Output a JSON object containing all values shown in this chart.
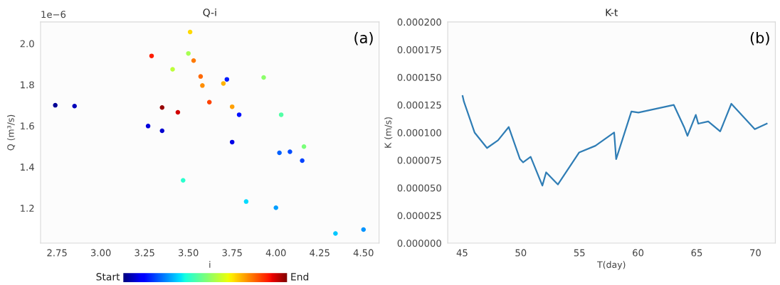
{
  "chart_data": [
    {
      "type": "scatter",
      "title": "Q-i",
      "xlabel": "i",
      "ylabel": "Q (m³/s)",
      "annotations": [
        "(a)",
        "1e−6",
        "Start",
        "End"
      ],
      "x": [
        2.74,
        2.85,
        3.51,
        3.29,
        3.5,
        3.53,
        3.41,
        3.57,
        3.72,
        3.93,
        3.58,
        3.7,
        3.62,
        3.75,
        3.35,
        3.44,
        3.79,
        4.03,
        3.27,
        3.35,
        3.75,
        4.16,
        4.02,
        4.08,
        4.15,
        3.47,
        3.83,
        4.0,
        4.34,
        4.5
      ],
      "values": [
        1.7,
        1.696,
        2.056,
        1.94,
        1.952,
        1.917,
        1.875,
        1.84,
        1.826,
        1.835,
        1.796,
        1.806,
        1.715,
        1.693,
        1.689,
        1.666,
        1.654,
        1.654,
        1.599,
        1.576,
        1.521,
        1.499,
        1.469,
        1.474,
        1.431,
        1.335,
        1.232,
        1.202,
        1.077,
        1.096
      ],
      "colors": [
        "#000096",
        "#0000ba",
        "#ffd900",
        "#ff1c00",
        "#a6ff52",
        "#ff7a00",
        "#bdff3a",
        "#ff6800",
        "#001aff",
        "#8cff6b",
        "#ff8e00",
        "#ffb300",
        "#ff4200",
        "#ffa000",
        "#960000",
        "#d10000",
        "#000fff",
        "#52ffa6",
        "#0000dc",
        "#0000d1",
        "#0000e8",
        "#7aff7a",
        "#0061ff",
        "#004cff",
        "#0042ff",
        "#29ffce",
        "#00dbff",
        "#009eff",
        "#00c7ff",
        "#0094ff"
      ],
      "xlim": [
        2.656,
        4.589
      ],
      "xticks": [
        {
          "value": 2.75,
          "label": "2.75"
        },
        {
          "value": 3.0,
          "label": "3.00"
        },
        {
          "value": 3.25,
          "label": "3.25"
        },
        {
          "value": 3.5,
          "label": "3.50"
        },
        {
          "value": 3.75,
          "label": "3.75"
        },
        {
          "value": 4.0,
          "label": "4.00"
        },
        {
          "value": 4.25,
          "label": "4.25"
        },
        {
          "value": 4.5,
          "label": "4.50"
        }
      ],
      "ylim": [
        1.03,
        2.105
      ],
      "yticks": [
        1.2,
        1.4,
        1.6,
        1.8,
        {
          "value": 2.0,
          "label": "2.0"
        }
      ],
      "marker": "circle",
      "grid": false
    },
    {
      "type": "line",
      "title": "K-t",
      "xlabel": "T(day)",
      "ylabel": "K (m/s)",
      "annotations": [
        "(b)"
      ],
      "color": "#2f7db5",
      "x": [
        45.04,
        45.15,
        46.06,
        47.12,
        48.06,
        48.97,
        49.93,
        50.2,
        50.84,
        51.84,
        52.16,
        53.16,
        54.98,
        56.36,
        57.96,
        58.13,
        59.43,
        60.03,
        63.04,
        63.92,
        64.21,
        64.92,
        65.13,
        65.98,
        67.0,
        67.95,
        69.95,
        70.97
      ],
      "values": [
        0.000133,
        0.000128,
        0.0001,
        8.6e-05,
        9.3e-05,
        0.000105,
        7.6e-05,
        7.3e-05,
        7.8e-05,
        5.2e-05,
        6.4e-05,
        5.3e-05,
        8.2e-05,
        8.8e-05,
        0.0001,
        7.6e-05,
        0.000119,
        0.000118,
        0.000125,
        0.000105,
        9.7e-05,
        0.000116,
        0.000108,
        0.00011,
        0.000101,
        0.000126,
        0.000103,
        0.000108
      ],
      "xlim": [
        43.77,
        71.7
      ],
      "xticks": [
        45,
        50,
        55,
        60,
        65,
        70
      ],
      "ylim": [
        0,
        0.0002
      ],
      "yticks": [
        {
          "value": 0,
          "label": "0.000000"
        },
        {
          "value": 2.5e-05,
          "label": "0.000025"
        },
        {
          "value": 5e-05,
          "label": "0.000050"
        },
        {
          "value": 7.5e-05,
          "label": "0.000075"
        },
        {
          "value": 0.0001,
          "label": "0.000100"
        },
        {
          "value": 0.000125,
          "label": "0.000125"
        },
        {
          "value": 0.00015,
          "label": "0.000150"
        },
        {
          "value": 0.000175,
          "label": "0.000175"
        },
        {
          "value": 0.0002,
          "label": "0.000200"
        }
      ],
      "line_style": "solid",
      "marker": "none",
      "grid": false
    }
  ]
}
